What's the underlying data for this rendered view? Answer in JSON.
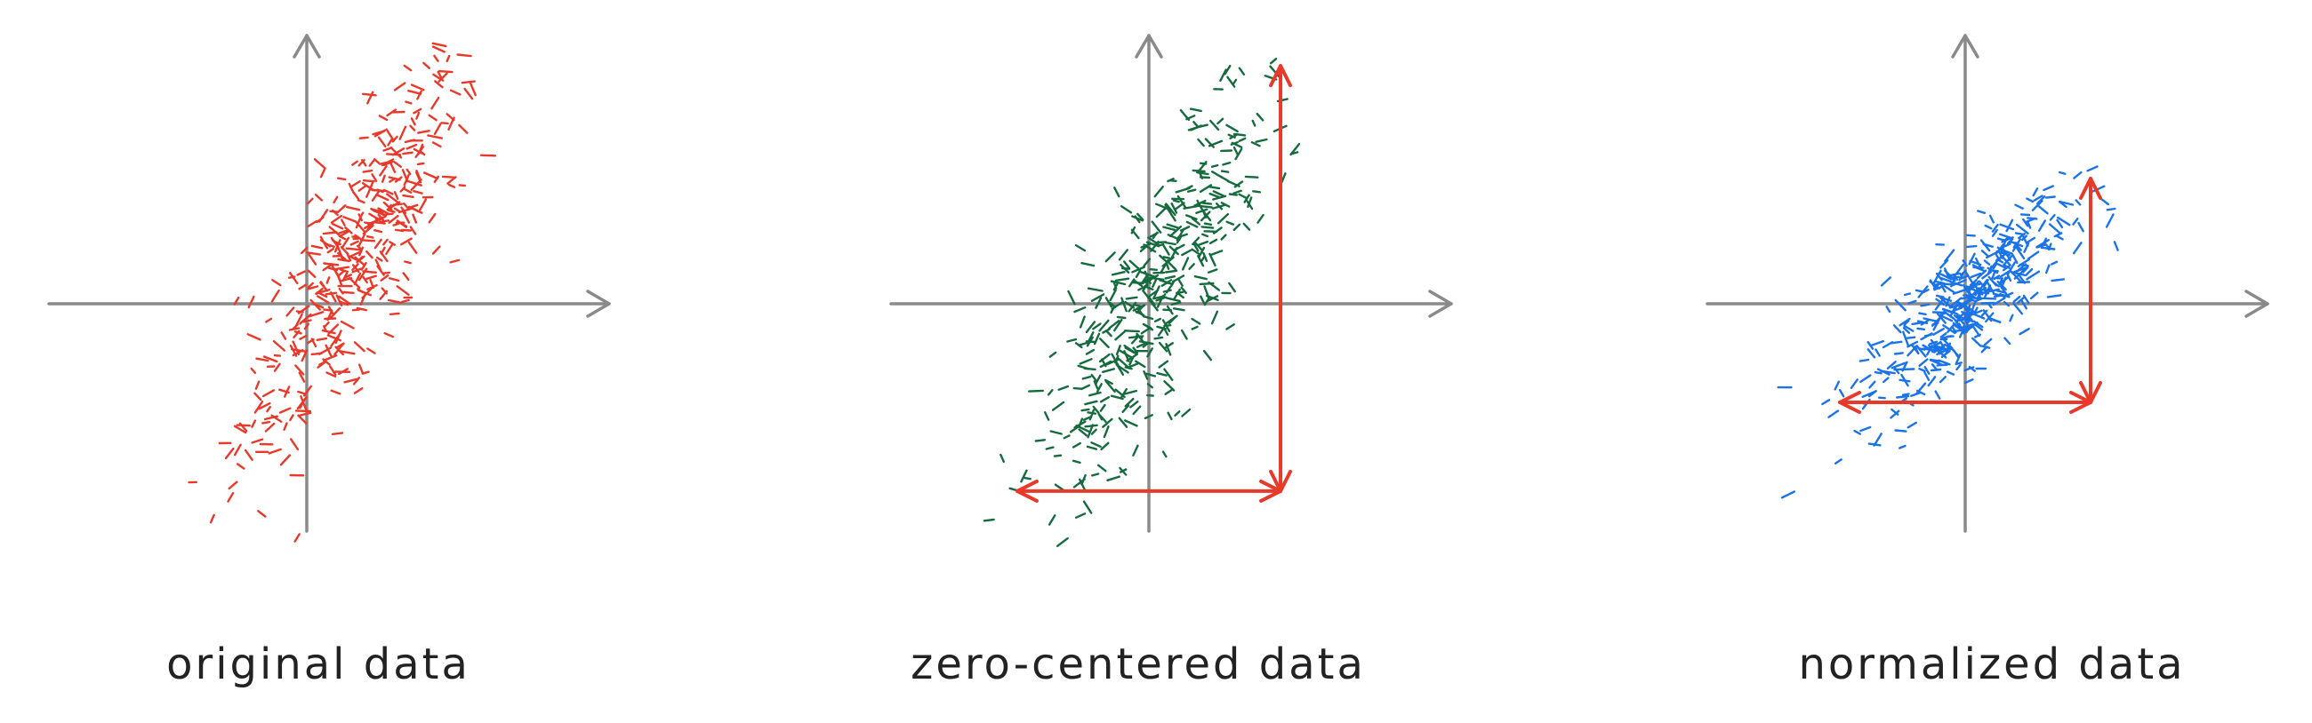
{
  "panels": [
    {
      "key": "original",
      "caption": "original data",
      "dot_color": "#e8392a",
      "mean": [
        0.9,
        0.9
      ],
      "spread": [
        1.05,
        1.9
      ],
      "correlation": 0.82,
      "count": 420,
      "extent_arrows": false
    },
    {
      "key": "zero_centered",
      "caption": "zero-centered data",
      "dot_color": "#156b3d",
      "mean": [
        0,
        0
      ],
      "spread": [
        1.05,
        1.9
      ],
      "correlation": 0.82,
      "count": 420,
      "extent_arrows": true
    },
    {
      "key": "normalized",
      "caption": "normalized data",
      "dot_color": "#1a73e8",
      "mean": [
        0,
        0
      ],
      "spread": [
        1.0,
        1.0
      ],
      "correlation": 0.82,
      "count": 420,
      "extent_arrows": true
    }
  ],
  "colors": {
    "axis": "#8a8a8a",
    "arrow": "#e8392a"
  }
}
